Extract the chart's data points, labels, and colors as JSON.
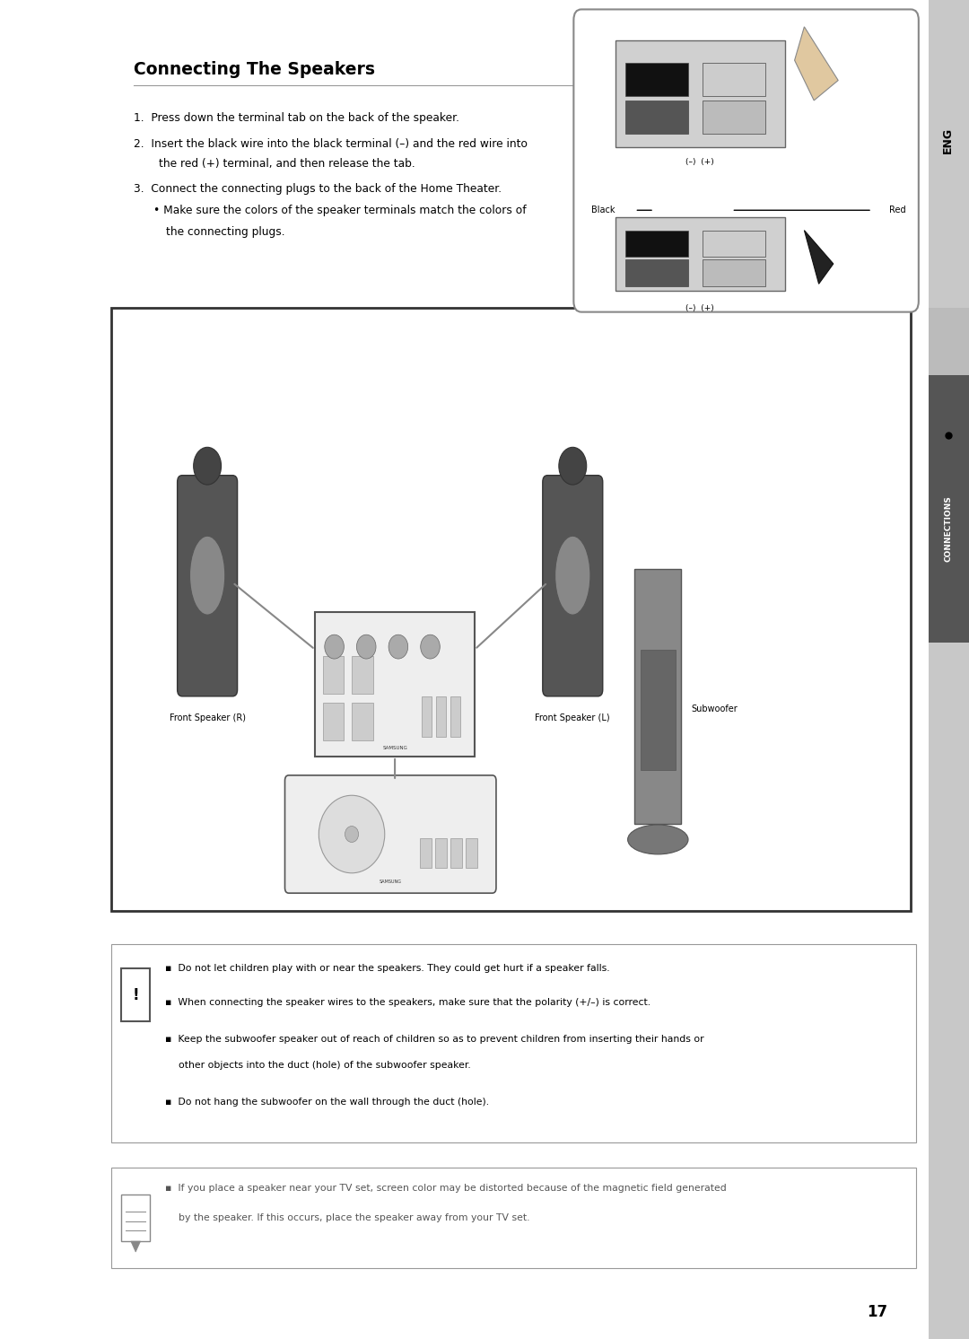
{
  "page_bg": "#ffffff",
  "title": "Connecting The Speakers",
  "title_fontsize": 13.5,
  "body_fontsize": 8.8,
  "warn_fontsize": 7.8,
  "note_fontsize": 7.8,
  "small_fontsize": 7.0,
  "page_number": "17",
  "step1": "1.  Press down the terminal tab on the back of the speaker.",
  "step2a": "2.  Insert the black wire into the black terminal (–) and the red wire into",
  "step2b": "the red (+) terminal, and then release the tab.",
  "step3a": "3.  Connect the connecting plugs to the back of the Home Theater.",
  "step3b": "• Make sure the colors of the speaker terminals match the colors of",
  "step3c": "the connecting plugs.",
  "warn1": "▪  Do not let children play with or near the speakers. They could get hurt if a speaker falls.",
  "warn2": "▪  When connecting the speaker wires to the speakers, make sure that the polarity (+/–) is correct.",
  "warn3": "▪  Keep the subwoofer speaker out of reach of children so as to prevent children from inserting their hands or",
  "warn3b": "other objects into the duct (hole) of the subwoofer speaker.",
  "warn4": "▪  Do not hang the subwoofer on the wall through the duct (hole).",
  "note1": "▪  If you place a speaker near your TV set, screen color may be distorted because of the magnetic field generated",
  "note1b": "by the speaker. If this occurs, place the speaker away from your TV set.",
  "eng_label": "ENG",
  "connections_label": "CONNECTIONS",
  "sidebar_gray": "#aaaaaa",
  "sidebar_dark": "#555555",
  "label_black": "Black",
  "label_red": "Red",
  "label_minus_plus_1": "(–)  (+)",
  "label_minus_plus_2": "(–)  (+)",
  "label_front_r": "Front Speaker (R)",
  "label_front_l": "Front Speaker (L)",
  "label_subwoofer": "Subwoofer"
}
